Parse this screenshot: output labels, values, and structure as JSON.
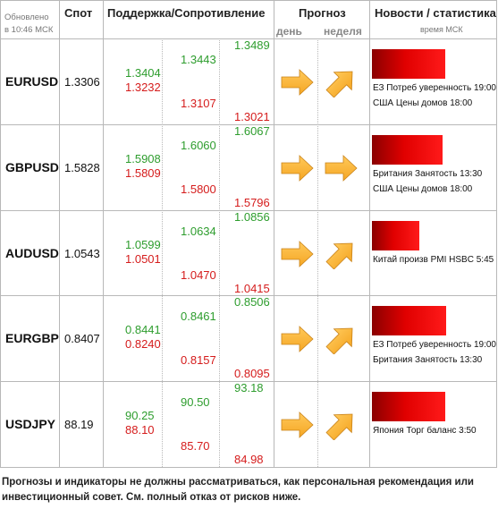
{
  "header": {
    "updated_line1": "Обновлено",
    "updated_line2": "в 10:46 МСК",
    "spot": "Спот",
    "support_resistance": "Поддержка/Сопротивление",
    "forecast": "Прогноз",
    "forecast_day": "день",
    "forecast_week": "неделя",
    "news": "Новости / статистика",
    "news_time": "время МСК"
  },
  "rows": [
    {
      "pair": "EURUSD",
      "spot": "1.3306",
      "levels": {
        "c1_up": "1.3404",
        "c1_down": "1.3232",
        "c2_up": "1.3443",
        "c2_down": "1.3107",
        "c3_up": "1.3489",
        "c3_down": "1.3021"
      },
      "forecast_day": "right-arrow-icon",
      "forecast_week": "up-right-arrow-icon",
      "news_strength": 0.63,
      "news": [
        "ЕЗ Потреб уверенность 19:00",
        "США Цены домов 18:00"
      ]
    },
    {
      "pair": "GBPUSD",
      "spot": "1.5828",
      "levels": {
        "c1_up": "1.5908",
        "c1_down": "1.5809",
        "c2_up": "1.6060",
        "c2_down": "1.5800",
        "c3_up": "1.6067",
        "c3_down": "1.5796"
      },
      "forecast_day": "right-arrow-icon",
      "forecast_week": "right-arrow-icon",
      "news_strength": 0.61,
      "news": [
        "Британия Занятость 13:30",
        "США Цены домов 18:00"
      ]
    },
    {
      "pair": "AUDUSD",
      "spot": "1.0543",
      "levels": {
        "c1_up": "1.0599",
        "c1_down": "1.0501",
        "c2_up": "1.0634",
        "c2_down": "1.0470",
        "c3_up": "1.0856",
        "c3_down": "1.0415"
      },
      "forecast_day": "right-arrow-icon",
      "forecast_week": "up-right-arrow-icon",
      "news_strength": 0.41,
      "news": [
        "Китай произв PMI HSBC 5:45"
      ]
    },
    {
      "pair": "EURGBP",
      "spot": "0.8407",
      "levels": {
        "c1_up": "0.8441",
        "c1_down": "0.8240",
        "c2_up": "0.8461",
        "c2_down": "0.8157",
        "c3_up": "0.8506",
        "c3_down": "0.8095"
      },
      "forecast_day": "right-arrow-icon",
      "forecast_week": "up-right-arrow-icon",
      "news_strength": 0.64,
      "news": [
        "ЕЗ Потреб уверенность 19:00",
        "Британия Занятость 13:30"
      ]
    },
    {
      "pair": "USDJPY",
      "spot": "88.19",
      "levels": {
        "c1_up": "90.25",
        "c1_down": "88.10",
        "c2_up": "90.50",
        "c2_down": "85.70",
        "c3_up": "93.18",
        "c3_down": "84.98"
      },
      "forecast_day": "right-arrow-icon",
      "forecast_week": "up-right-arrow-icon",
      "news_strength": 0.63,
      "news": [
        "Япония Торг баланс 3:50"
      ]
    }
  ],
  "colors": {
    "support": "#d51c1c",
    "resistance": "#2e9d2e",
    "arrow": "#f5a623",
    "news_bar": "#e00000"
  },
  "disclaimer": "Прогнозы и индикаторы не должны рассматриваться, как персональная рекомендация или инвестиционный совет. См. полный отказ от рисков ниже."
}
